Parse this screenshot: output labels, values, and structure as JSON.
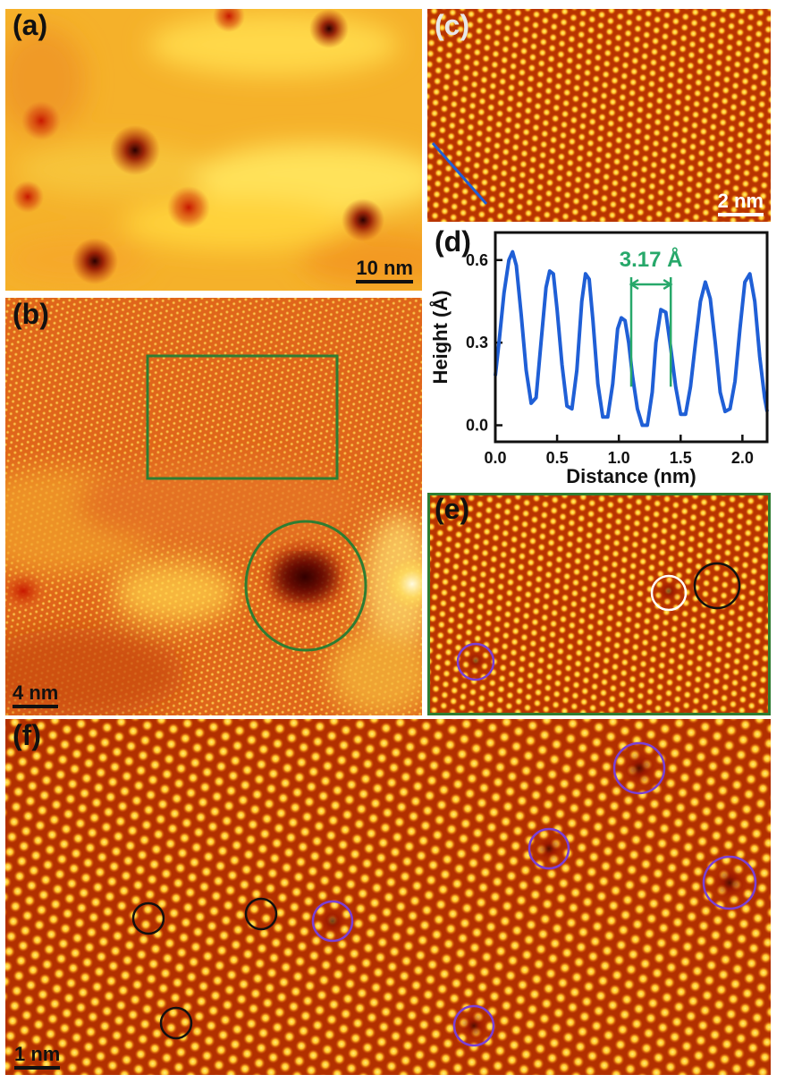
{
  "panels": {
    "a": {
      "label": "(a)",
      "scale": "10 nm"
    },
    "b": {
      "label": "(b)",
      "scale": "4 nm"
    },
    "c": {
      "label": "(c)",
      "scale": "2 nm"
    },
    "d": {
      "label": "(d)"
    },
    "e": {
      "label": "(e)"
    },
    "f": {
      "label": "(f)",
      "scale": "1 nm"
    }
  },
  "colors": {
    "frame_green": "#2e7d32",
    "profile_blue": "#1f5fd6",
    "annotation_green": "#27a86a",
    "marker_purple": "#7a3fd6",
    "marker_black": "#111111",
    "marker_white": "#ffffff"
  },
  "chart_data": {
    "type": "line",
    "title": "",
    "xlabel": "Distance (nm)",
    "ylabel": "Height (Å)",
    "xlim": [
      0.0,
      2.2
    ],
    "ylim": [
      -0.06,
      0.7
    ],
    "xticks": [
      "0.0",
      "0.5",
      "1.0",
      "1.5",
      "2.0"
    ],
    "yticks": [
      "0.0",
      "0.3",
      "0.6"
    ],
    "annotation": "3.17 Å",
    "annotation_range_nm": [
      1.1,
      1.42
    ],
    "series": [
      {
        "x": [
          0.0,
          0.03,
          0.07,
          0.11,
          0.14,
          0.17,
          0.21,
          0.25,
          0.29,
          0.33,
          0.37,
          0.41,
          0.44,
          0.47,
          0.5,
          0.54,
          0.58,
          0.62,
          0.66,
          0.7,
          0.73,
          0.76,
          0.79,
          0.83,
          0.87,
          0.91,
          0.95,
          0.99,
          1.02,
          1.05,
          1.08,
          1.11,
          1.15,
          1.19,
          1.23,
          1.27,
          1.3,
          1.34,
          1.38,
          1.42,
          1.46,
          1.5,
          1.54,
          1.58,
          1.62,
          1.66,
          1.7,
          1.74,
          1.78,
          1.82,
          1.86,
          1.9,
          1.94,
          1.98,
          2.02,
          2.06,
          2.1,
          2.14,
          2.18,
          2.2
        ],
        "y": [
          0.18,
          0.3,
          0.48,
          0.6,
          0.63,
          0.58,
          0.4,
          0.2,
          0.08,
          0.1,
          0.3,
          0.5,
          0.56,
          0.55,
          0.42,
          0.22,
          0.07,
          0.06,
          0.2,
          0.45,
          0.55,
          0.53,
          0.38,
          0.15,
          0.03,
          0.03,
          0.15,
          0.35,
          0.39,
          0.38,
          0.3,
          0.18,
          0.06,
          0.0,
          0.0,
          0.12,
          0.3,
          0.42,
          0.41,
          0.28,
          0.14,
          0.04,
          0.04,
          0.14,
          0.3,
          0.45,
          0.52,
          0.46,
          0.3,
          0.12,
          0.05,
          0.06,
          0.16,
          0.35,
          0.52,
          0.55,
          0.45,
          0.25,
          0.1,
          0.05
        ]
      }
    ]
  }
}
